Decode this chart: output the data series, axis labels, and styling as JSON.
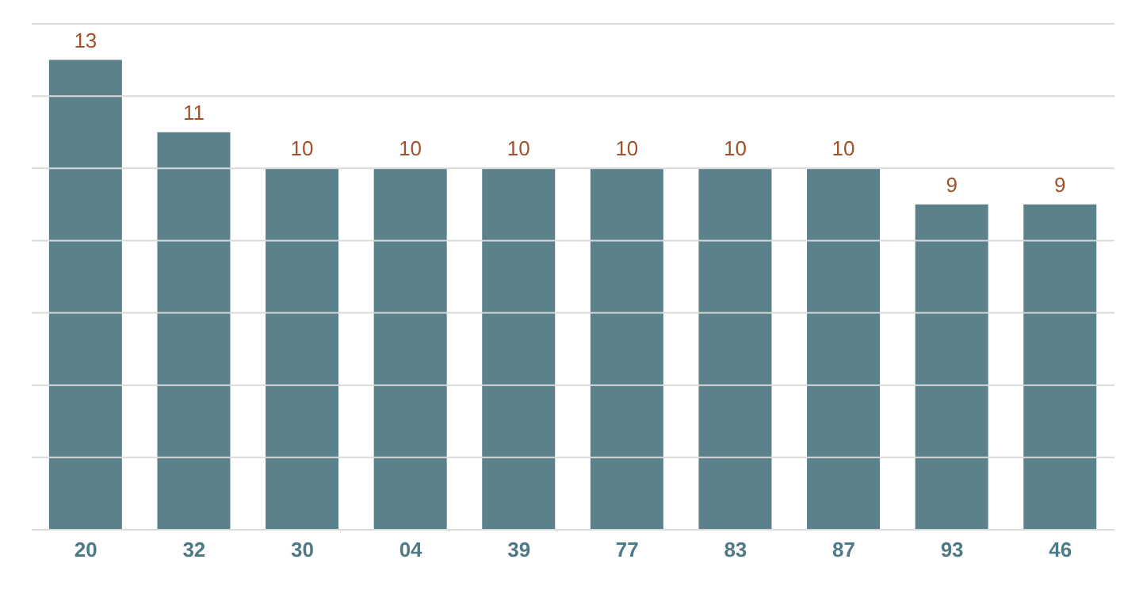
{
  "chart_data": {
    "type": "bar",
    "categories": [
      "20",
      "32",
      "30",
      "04",
      "39",
      "77",
      "83",
      "87",
      "93",
      "46"
    ],
    "values": [
      13,
      11,
      10,
      10,
      10,
      10,
      10,
      10,
      9,
      9
    ],
    "color": "#5b818a",
    "ylim": [
      0,
      14
    ],
    "yticks": [
      0,
      2,
      4,
      6,
      8,
      10,
      12,
      14
    ],
    "grid": "y",
    "tick_labels": "x",
    "data_labels": true
  }
}
